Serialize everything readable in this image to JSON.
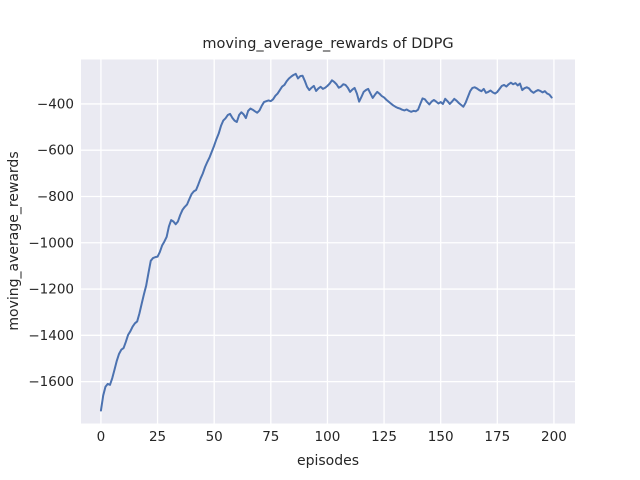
{
  "chart_data": {
    "type": "line",
    "title": "moving_average_rewards of DDPG",
    "xlabel": "episodes",
    "ylabel": "moving_average_rewards",
    "grid": true,
    "legend": false,
    "plot_background": "#eaeaf2",
    "grid_color": "#ffffff",
    "text_color": "#262626",
    "xlim": [
      -8.8,
      209.3
    ],
    "ylim": [
      -1781,
      -208
    ],
    "xticks": [
      0,
      25,
      50,
      75,
      100,
      125,
      150,
      175,
      200
    ],
    "xtick_labels": [
      "0",
      "25",
      "50",
      "75",
      "100",
      "125",
      "150",
      "175",
      "200"
    ],
    "yticks": [
      -400,
      -600,
      -800,
      -1000,
      -1200,
      -1400,
      -1600
    ],
    "ytick_labels": [
      "−400",
      "−600",
      "−800",
      "−1000",
      "−1200",
      "−1400",
      "−1600"
    ],
    "series": [
      {
        "name": "moving_average_rewards",
        "color": "#4c72b0",
        "x_start": 0,
        "x_step": 1,
        "values": [
          -1725,
          -1660,
          -1622,
          -1610,
          -1614,
          -1585,
          -1548,
          -1510,
          -1480,
          -1462,
          -1455,
          -1428,
          -1398,
          -1382,
          -1362,
          -1348,
          -1340,
          -1305,
          -1263,
          -1222,
          -1184,
          -1130,
          -1078,
          -1066,
          -1062,
          -1060,
          -1040,
          -1012,
          -995,
          -975,
          -930,
          -902,
          -908,
          -920,
          -908,
          -880,
          -858,
          -845,
          -835,
          -812,
          -790,
          -778,
          -772,
          -748,
          -722,
          -700,
          -672,
          -650,
          -630,
          -605,
          -580,
          -552,
          -528,
          -495,
          -472,
          -462,
          -448,
          -443,
          -460,
          -472,
          -478,
          -448,
          -436,
          -445,
          -461,
          -430,
          -420,
          -425,
          -432,
          -438,
          -428,
          -408,
          -392,
          -388,
          -385,
          -388,
          -380,
          -365,
          -355,
          -340,
          -325,
          -318,
          -302,
          -290,
          -282,
          -275,
          -270,
          -290,
          -280,
          -278,
          -300,
          -326,
          -340,
          -330,
          -322,
          -344,
          -333,
          -326,
          -335,
          -330,
          -322,
          -312,
          -298,
          -305,
          -315,
          -330,
          -325,
          -315,
          -318,
          -330,
          -348,
          -338,
          -331,
          -355,
          -390,
          -370,
          -348,
          -340,
          -335,
          -355,
          -374,
          -360,
          -348,
          -356,
          -366,
          -372,
          -382,
          -390,
          -398,
          -406,
          -412,
          -417,
          -420,
          -425,
          -428,
          -424,
          -430,
          -434,
          -430,
          -432,
          -425,
          -400,
          -376,
          -380,
          -392,
          -402,
          -390,
          -383,
          -390,
          -398,
          -392,
          -400,
          -378,
          -388,
          -400,
          -390,
          -378,
          -386,
          -396,
          -404,
          -412,
          -395,
          -370,
          -345,
          -331,
          -328,
          -333,
          -340,
          -345,
          -335,
          -352,
          -348,
          -342,
          -350,
          -355,
          -348,
          -335,
          -322,
          -318,
          -325,
          -315,
          -308,
          -315,
          -310,
          -320,
          -312,
          -340,
          -332,
          -328,
          -333,
          -345,
          -352,
          -345,
          -340,
          -344,
          -350,
          -345,
          -355,
          -360,
          -372
        ]
      }
    ]
  }
}
